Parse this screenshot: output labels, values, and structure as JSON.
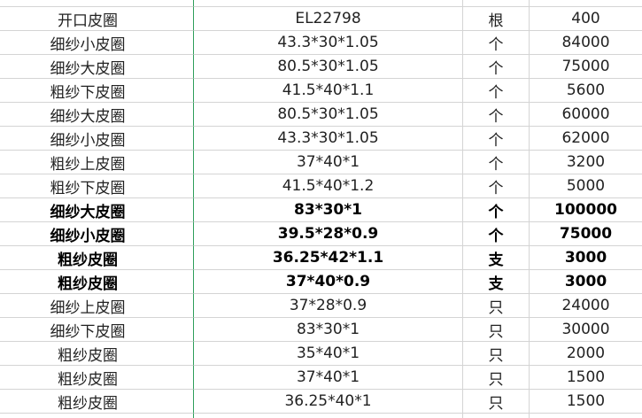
{
  "table": {
    "rows": [
      {
        "cells": [
          "开口皮圈",
          "EL22798",
          "根",
          400
        ],
        "bold": false
      },
      {
        "cells": [
          "细纱小皮圈",
          "43.3*30*1.05",
          "个",
          84000
        ],
        "bold": false
      },
      {
        "cells": [
          "细纱大皮圈",
          "80.5*30*1.05",
          "个",
          75000
        ],
        "bold": false
      },
      {
        "cells": [
          "粗纱下皮圈",
          "41.5*40*1.1",
          "个",
          5600
        ],
        "bold": false
      },
      {
        "cells": [
          "细纱大皮圈",
          "80.5*30*1.05",
          "个",
          60000
        ],
        "bold": false
      },
      {
        "cells": [
          "细纱小皮圈",
          "43.3*30*1.05",
          "个",
          62000
        ],
        "bold": false
      },
      {
        "cells": [
          "粗纱上皮圈",
          "37*40*1",
          "个",
          3200
        ],
        "bold": false
      },
      {
        "cells": [
          "粗纱下皮圈",
          "41.5*40*1.2",
          "个",
          5000
        ],
        "bold": false
      },
      {
        "cells": [
          "细纱大皮圈",
          "83*30*1",
          "个",
          100000
        ],
        "bold": true
      },
      {
        "cells": [
          "细纱小皮圈",
          "39.5*28*0.9",
          "个",
          75000
        ],
        "bold": true
      },
      {
        "cells": [
          "粗纱皮圈",
          "36.25*42*1.1",
          "支",
          3000
        ],
        "bold": true
      },
      {
        "cells": [
          "粗纱皮圈",
          "37*40*0.9",
          "支",
          3000
        ],
        "bold": true
      },
      {
        "cells": [
          "细纱上皮圈",
          "37*28*0.9",
          "只",
          24000
        ],
        "bold": false
      },
      {
        "cells": [
          "细纱下皮圈",
          "83*30*1",
          "只",
          30000
        ],
        "bold": false
      },
      {
        "cells": [
          "粗纱皮圈",
          "35*40*1",
          "只",
          2000
        ],
        "bold": false
      },
      {
        "cells": [
          "粗纱皮圈",
          "37*40*1",
          "只",
          1500
        ],
        "bold": false
      },
      {
        "cells": [
          "粗纱皮圈",
          "36.25*40*1",
          "只",
          1500
        ],
        "bold": false
      }
    ]
  }
}
